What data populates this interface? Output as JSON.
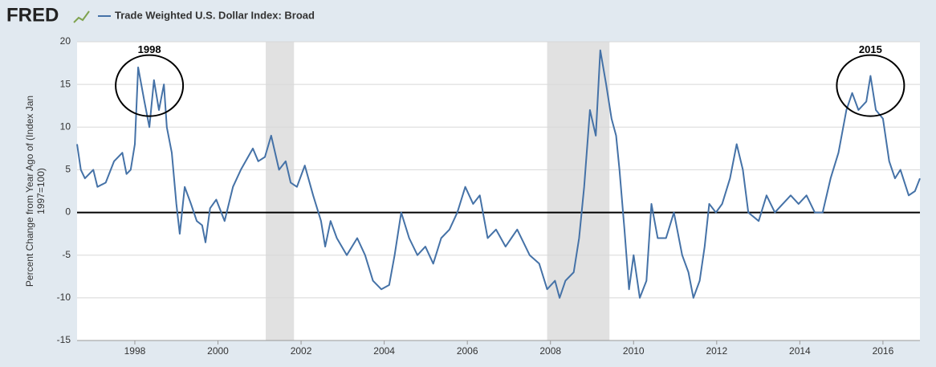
{
  "chart_data": {
    "type": "line",
    "logo": "FRED",
    "title": "Trade Weighted U.S. Dollar Index: Broad",
    "ylabel": [
      "Percent Change from Year Ago of (Index Jan",
      "1997=100)"
    ],
    "xlim": [
      1996.61,
      2016.89
    ],
    "xticks": [
      1998,
      2000,
      2002,
      2004,
      2006,
      2008,
      2010,
      2012,
      2014,
      2016
    ],
    "ylim": [
      -15,
      20
    ],
    "yticks": [
      -15,
      -10,
      -5,
      0,
      5,
      10,
      15,
      20
    ],
    "grid": true,
    "recessions": [
      [
        2001.15,
        2001.83
      ],
      [
        2007.92,
        2009.42
      ]
    ],
    "annotations": [
      {
        "text": "1998",
        "x": 1998.35,
        "y": 19
      },
      {
        "text": "2015",
        "x": 2015.7,
        "y": 19
      }
    ],
    "series": [
      {
        "name": "Trade Weighted U.S. Dollar Index: Broad",
        "color": "#4572a7",
        "x": [
          1996.61,
          1996.7,
          1996.8,
          1997.0,
          1997.1,
          1997.3,
          1997.5,
          1997.7,
          1997.8,
          1997.9,
          1998.0,
          1998.08,
          1998.23,
          1998.35,
          1998.46,
          1998.58,
          1998.7,
          1998.77,
          1998.89,
          1999.0,
          1999.08,
          1999.2,
          1999.35,
          1999.49,
          1999.62,
          1999.7,
          1999.81,
          1999.96,
          2000.16,
          2000.36,
          2000.55,
          2000.84,
          2000.97,
          2001.13,
          2001.28,
          2001.47,
          2001.63,
          2001.75,
          2001.9,
          2002.09,
          2002.29,
          2002.48,
          2002.58,
          2002.71,
          2002.86,
          2003.1,
          2003.35,
          2003.54,
          2003.73,
          2003.93,
          2004.12,
          2004.25,
          2004.41,
          2004.6,
          2004.8,
          2004.99,
          2005.18,
          2005.37,
          2005.57,
          2005.76,
          2005.95,
          2006.14,
          2006.3,
          2006.49,
          2006.69,
          2006.92,
          2007.2,
          2007.5,
          2007.73,
          2007.92,
          2008.11,
          2008.22,
          2008.36,
          2008.56,
          2008.69,
          2008.81,
          2008.95,
          2009.09,
          2009.2,
          2009.34,
          2009.47,
          2009.58,
          2009.66,
          2009.78,
          2009.89,
          2010.0,
          2010.15,
          2010.31,
          2010.43,
          2010.58,
          2010.78,
          2010.97,
          2011.17,
          2011.32,
          2011.44,
          2011.59,
          2011.71,
          2011.82,
          2011.98,
          2012.13,
          2012.32,
          2012.48,
          2012.63,
          2012.76,
          2013.01,
          2013.2,
          2013.4,
          2013.59,
          2013.78,
          2013.97,
          2014.16,
          2014.36,
          2014.55,
          2014.74,
          2014.93,
          2015.12,
          2015.26,
          2015.41,
          2015.6,
          2015.7,
          2015.83,
          2016.0,
          2016.15,
          2016.29,
          2016.42,
          2016.62,
          2016.77,
          2016.89
        ],
        "values": [
          8,
          5,
          4,
          5,
          3,
          3.5,
          6,
          7,
          4.5,
          5,
          8,
          17,
          13,
          10,
          15.5,
          12,
          15,
          10,
          7,
          1,
          -2.5,
          3,
          1,
          -1,
          -1.5,
          -3.5,
          0.5,
          1.5,
          -1,
          3,
          5,
          7.5,
          6,
          6.5,
          9,
          5,
          6,
          3.5,
          3,
          5.5,
          2,
          -1,
          -4,
          -1,
          -3,
          -5,
          -3,
          -5,
          -8,
          -9,
          -8.5,
          -5,
          0,
          -3,
          -5,
          -4,
          -6,
          -3,
          -2,
          0,
          3,
          1,
          2,
          -3,
          -2,
          -4,
          -2,
          -5,
          -6,
          -9,
          -8,
          -10,
          -8,
          -7,
          -3,
          3,
          12,
          9,
          19,
          15,
          11,
          9,
          5,
          -2,
          -9,
          -5,
          -10,
          -8,
          1,
          -3,
          -3,
          0,
          -5,
          -7,
          -10,
          -8,
          -4,
          1,
          0,
          1,
          4,
          8,
          5,
          0,
          -1,
          2,
          0,
          1,
          2,
          1,
          2,
          0,
          0,
          4,
          7,
          12,
          14,
          12,
          13,
          16,
          12,
          11,
          6,
          4,
          5,
          2,
          2.5,
          4
        ]
      }
    ]
  }
}
